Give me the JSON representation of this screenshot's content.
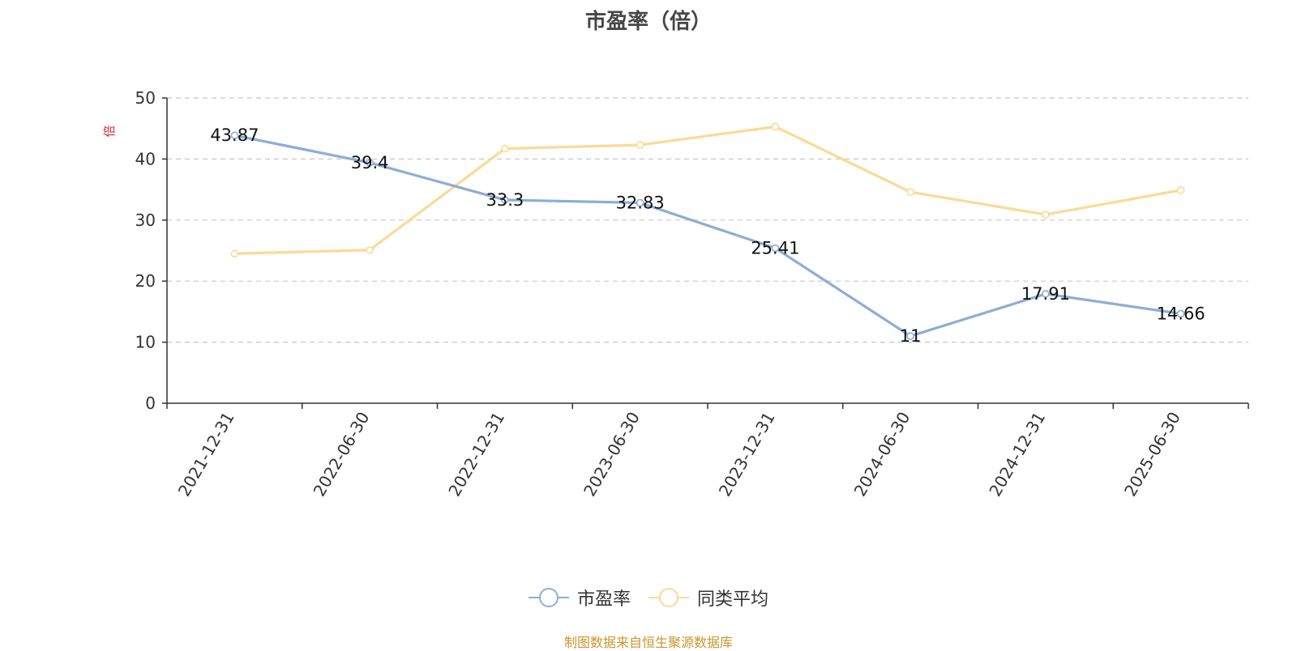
{
  "chart_data": {
    "type": "line",
    "title": "市盈率（倍）",
    "ylabel": "倍",
    "ylim": [
      0,
      50
    ],
    "yticks": [
      0,
      10,
      20,
      30,
      40,
      50
    ],
    "grid": true,
    "legend_position": "bottom",
    "categories": [
      "2021-12-31",
      "2022-06-30",
      "2022-12-31",
      "2023-06-30",
      "2023-12-31",
      "2024-06-30",
      "2024-12-31",
      "2025-06-30"
    ],
    "series": [
      {
        "name": "市盈率",
        "color": "#8eacd8",
        "values": [
          43.87,
          39.4,
          33.3,
          32.83,
          25.41,
          11,
          17.91,
          14.66
        ],
        "labels": [
          "43.87",
          "39.4",
          "33.3",
          "32.83",
          "25.41",
          "11",
          "17.91",
          "14.66"
        ]
      },
      {
        "name": "同类平均",
        "color": "#fcd995",
        "values": [
          24.5,
          25.1,
          41.7,
          42.3,
          45.3,
          34.6,
          30.9,
          34.9
        ]
      }
    ],
    "source": "制图数据来自恒生聚源数据库"
  }
}
